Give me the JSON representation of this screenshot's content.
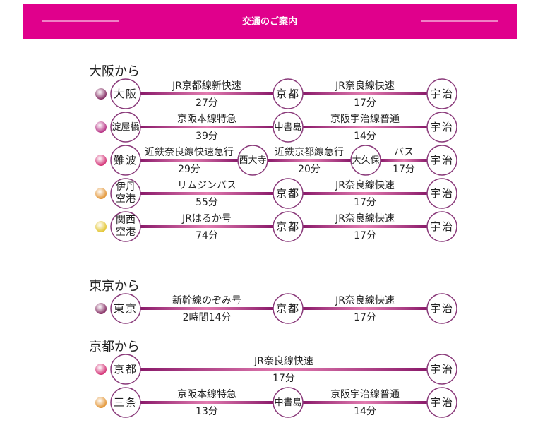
{
  "header": {
    "title": "交通のご案内"
  },
  "sections": [
    {
      "title": "大阪から",
      "routes": [
        {
          "dot_color": "#7a1a55",
          "stations": [
            "大阪",
            "京都",
            "宇治"
          ],
          "segments": [
            {
              "line": "JR京都線新快速",
              "time": "27分"
            },
            {
              "line": "JR奈良線快速",
              "time": "17分"
            }
          ]
        },
        {
          "dot_color": "#b0207a",
          "stations": [
            "淀屋橋",
            "中書島",
            "宇治"
          ],
          "segments": [
            {
              "line": "京阪本線特急",
              "time": "39分"
            },
            {
              "line": "京阪宇治線普通",
              "time": "14分"
            }
          ]
        },
        {
          "dot_color": "#d0206a",
          "stations": [
            "難波",
            "西大寺",
            "大久保",
            "宇治"
          ],
          "segments": [
            {
              "line": "近鉄奈良線快速急行",
              "time": "29分"
            },
            {
              "line": "近鉄京都線急行",
              "time": "20分"
            },
            {
              "line": "バス",
              "time": "17分"
            }
          ]
        },
        {
          "dot_color": "#e08a20",
          "stations": [
            "伊丹空港",
            "京都",
            "宇治"
          ],
          "segments": [
            {
              "line": "リムジンバス",
              "time": "55分"
            },
            {
              "line": "JR奈良線快速",
              "time": "17分"
            }
          ]
        },
        {
          "dot_color": "#e0c020",
          "stations": [
            "関西空港",
            "京都",
            "宇治"
          ],
          "segments": [
            {
              "line": "JRはるか号",
              "time": "74分"
            },
            {
              "line": "JR奈良線快速",
              "time": "17分"
            }
          ]
        }
      ]
    },
    {
      "title": "東京から",
      "routes": [
        {
          "dot_color": "#7a1a55",
          "stations": [
            "東京",
            "京都",
            "宇治"
          ],
          "segments": [
            {
              "line": "新幹線のぞみ号",
              "time": "2時間14分"
            },
            {
              "line": "JR奈良線快速",
              "time": "17分"
            }
          ]
        }
      ]
    },
    {
      "title": "京都から",
      "routes": [
        {
          "dot_color": "#d0206a",
          "stations": [
            "京都",
            "宇治"
          ],
          "segments": [
            {
              "line": "JR奈良線快速",
              "time": "17分"
            }
          ]
        },
        {
          "dot_color": "#e08a20",
          "stations": [
            "三条",
            "中書島",
            "宇治"
          ],
          "segments": [
            {
              "line": "京阪本線特急",
              "time": "13分"
            },
            {
              "line": "京阪宇治線普通",
              "time": "14分"
            }
          ]
        }
      ]
    }
  ]
}
